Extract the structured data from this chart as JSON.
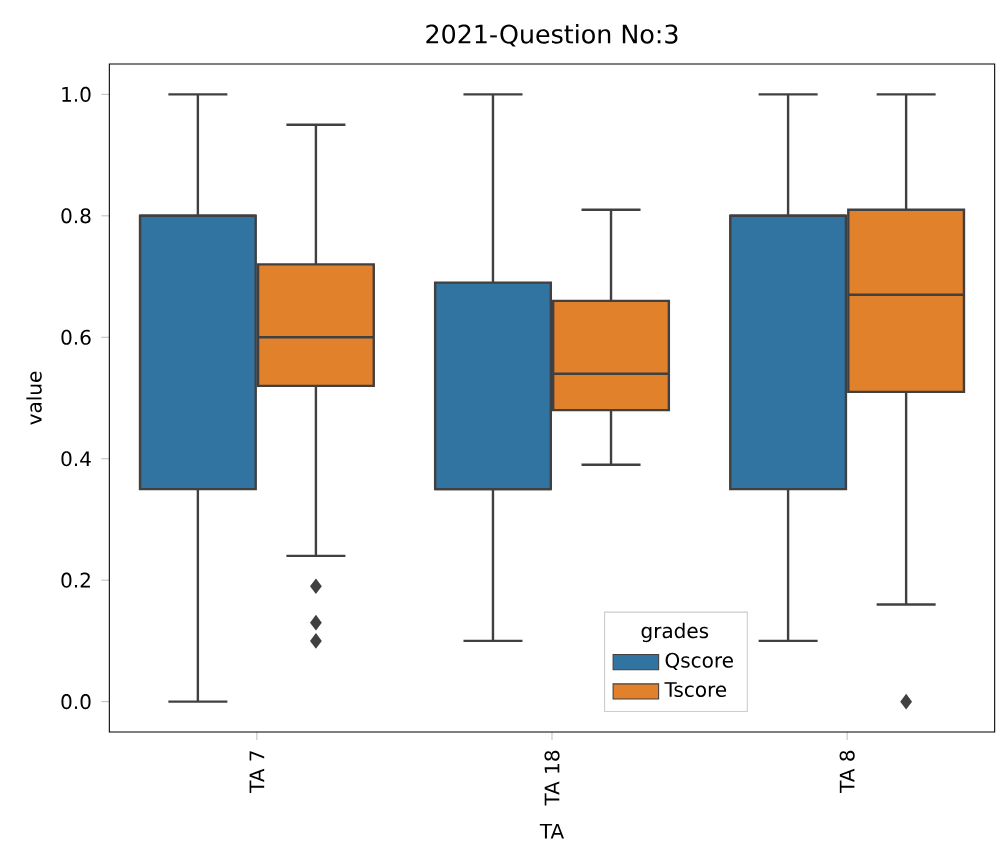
{
  "chart_data": {
    "type": "box",
    "title": "2021-Question No:3",
    "xlabel": "TA",
    "ylabel": "value",
    "legend_title": "grades",
    "legend": "bottom",
    "marker": "diamond",
    "categories": [
      "TA 7",
      "TA 18",
      "TA 8"
    ],
    "ylim": [
      -0.05,
      1.05
    ],
    "yticks": [
      {
        "value": 0,
        "label": "0.0"
      },
      {
        "value": 0.2,
        "label": "0.2"
      },
      {
        "value": 0.4,
        "label": "0.4"
      },
      {
        "value": 0.6,
        "label": "0.6"
      },
      {
        "value": 0.8,
        "label": "0.8"
      },
      {
        "value": 1,
        "label": "1.0"
      }
    ],
    "series": [
      {
        "name": "Qscore",
        "color": "#3274a1",
        "boxes": [
          {
            "low": 0,
            "q1": 0.35,
            "median": 0.8,
            "q3": 0.8,
            "high": 1
          },
          {
            "low": 0.1,
            "q1": 0.35,
            "median": 0.35,
            "q3": 0.69,
            "high": 1
          },
          {
            "low": 0.1,
            "q1": 0.35,
            "median": 0.8,
            "q3": 0.8,
            "high": 1
          }
        ]
      },
      {
        "name": "Tscore",
        "color": "#e1812c",
        "boxes": [
          {
            "low": 0.24,
            "q1": 0.52,
            "median": 0.6,
            "q3": 0.72,
            "high": 0.95,
            "outliers": [
              0.19,
              0.13,
              0.1
            ]
          },
          {
            "low": 0.39,
            "q1": 0.48,
            "median": 0.54,
            "q3": 0.66,
            "high": 0.81
          },
          {
            "low": 0.16,
            "q1": 0.51,
            "median": 0.67,
            "q3": 0.81,
            "high": 1,
            "outliers": [
              0
            ]
          }
        ]
      }
    ]
  }
}
